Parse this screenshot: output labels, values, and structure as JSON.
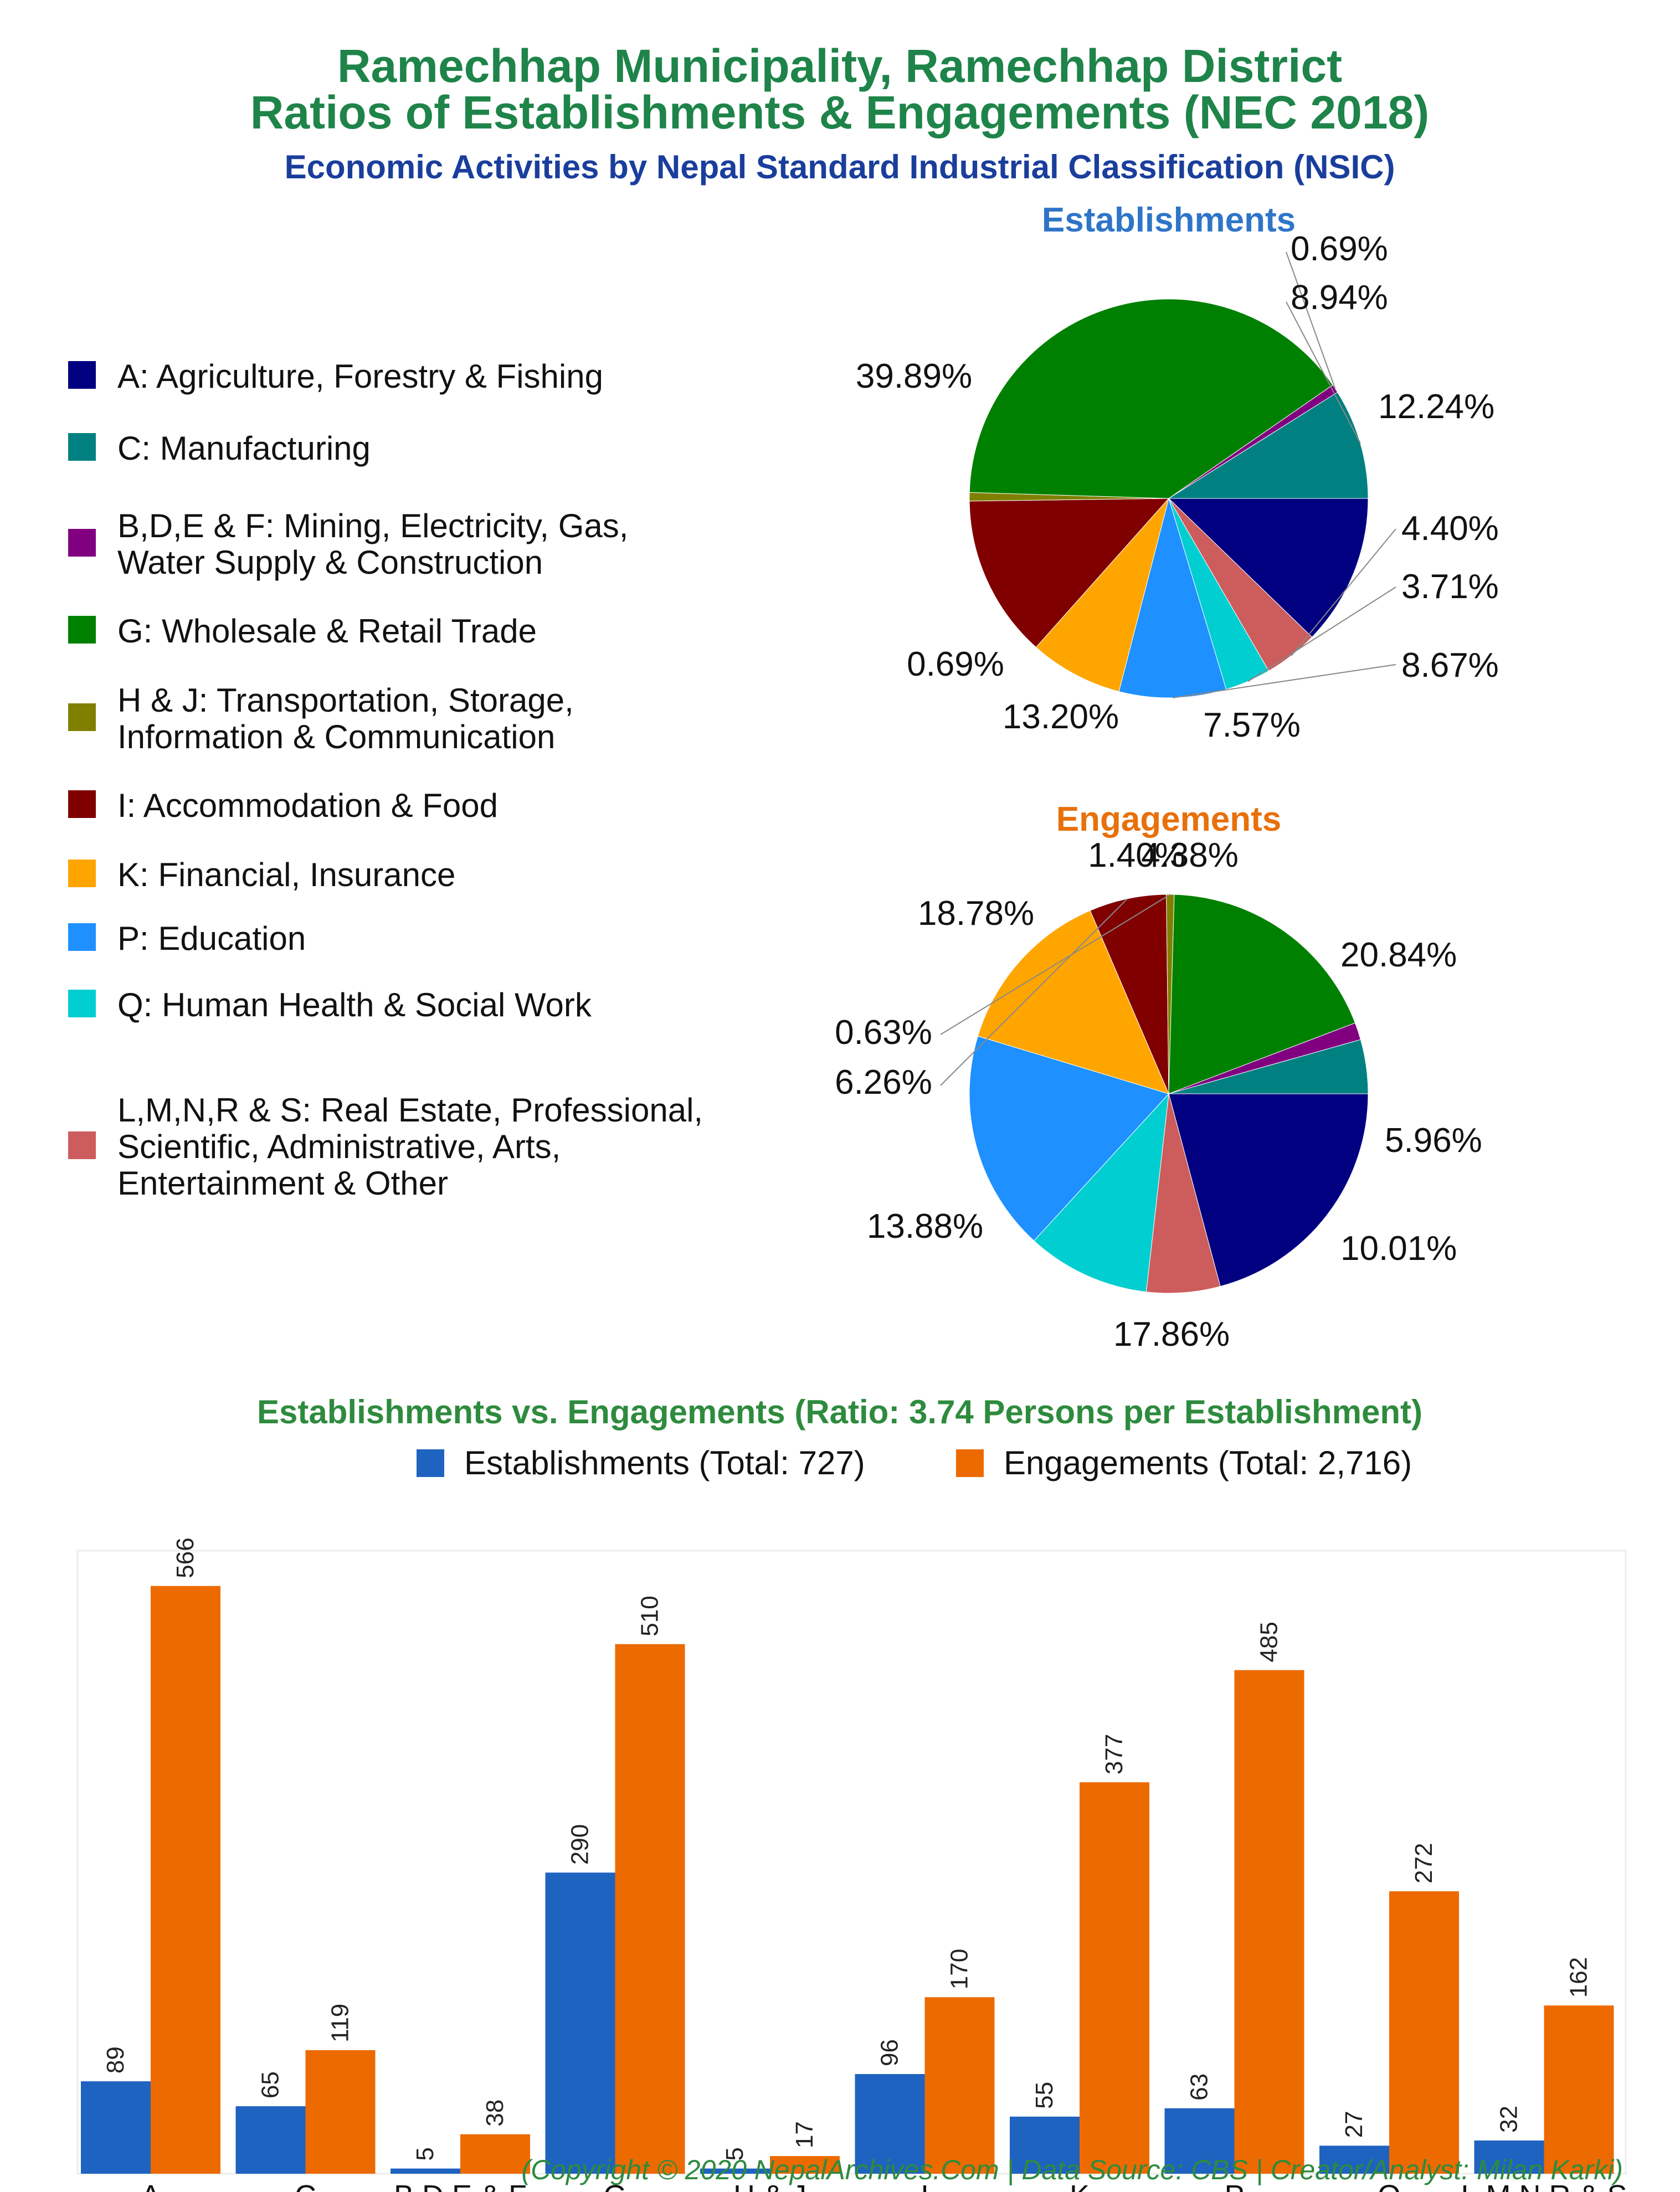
{
  "header": {
    "title_line1": "Ramechhap Municipality, Ramechhap District",
    "title_line2": "Ratios of Establishments & Engagements (NEC 2018)",
    "subtitle": "Economic Activities by Nepal Standard Industrial Classification (NSIC)"
  },
  "legend": [
    {
      "label_lines": [
        "A: Agriculture, Forestry & Fishing"
      ],
      "color": "#000080"
    },
    {
      "label_lines": [
        "C: Manufacturing"
      ],
      "color": "#008080"
    },
    {
      "label_lines": [
        "B,D,E & F: Mining, Electricity, Gas,",
        "Water Supply & Construction"
      ],
      "color": "#800080"
    },
    {
      "label_lines": [
        "G: Wholesale & Retail Trade"
      ],
      "color": "#008000"
    },
    {
      "label_lines": [
        "H & J: Transportation, Storage,",
        "Information & Communication"
      ],
      "color": "#808000"
    },
    {
      "label_lines": [
        "I: Accommodation & Food"
      ],
      "color": "#800000"
    },
    {
      "label_lines": [
        "K: Financial, Insurance"
      ],
      "color": "#FFA500"
    },
    {
      "label_lines": [
        "P: Education"
      ],
      "color": "#1E90FF"
    },
    {
      "label_lines": [
        "Q: Human Health & Social Work"
      ],
      "color": "#00CED1"
    },
    {
      "label_lines": [
        "L,M,N,R & S: Real Estate, Professional,",
        "Scientific, Administrative, Arts,",
        "Entertainment & Other"
      ],
      "color": "#CD5C5C"
    }
  ],
  "chart_data": [
    {
      "type": "pie",
      "title": "Establishments",
      "slice_order": [
        "A",
        "L,M,N,R & S",
        "Q",
        "P",
        "K",
        "I",
        "H & J",
        "G",
        "B,D,E & F",
        "C"
      ],
      "values": [
        12.24,
        4.4,
        3.71,
        8.67,
        7.57,
        13.2,
        0.69,
        39.89,
        0.69,
        8.94
      ],
      "labels": [
        "12.24%",
        "4.40%",
        "3.71%",
        "8.67%",
        "7.57%",
        "13.20%",
        "0.69%",
        "39.89%",
        "0.69%",
        "8.94%"
      ],
      "colors": [
        "#000080",
        "#CD5C5C",
        "#00CED1",
        "#1E90FF",
        "#FFA500",
        "#800000",
        "#808000",
        "#008000",
        "#800080",
        "#008080"
      ]
    },
    {
      "type": "pie",
      "title": "Engagements",
      "slice_order": [
        "A",
        "L,M,N,R & S",
        "Q",
        "P",
        "K",
        "I",
        "H & J",
        "G",
        "B,D,E & F",
        "C"
      ],
      "values": [
        20.84,
        5.96,
        10.01,
        17.86,
        13.88,
        6.26,
        0.63,
        18.78,
        1.4,
        4.38
      ],
      "labels": [
        "20.84%",
        "5.96%",
        "10.01%",
        "17.86%",
        "13.88%",
        "6.26%",
        "0.63%",
        "18.78%",
        "1.40%",
        "4.38%"
      ],
      "colors": [
        "#000080",
        "#CD5C5C",
        "#00CED1",
        "#1E90FF",
        "#FFA500",
        "#800000",
        "#808000",
        "#008000",
        "#800080",
        "#008080"
      ]
    },
    {
      "type": "bar",
      "title": "Establishments vs. Engagements (Ratio: 3.74 Persons per Establishment)",
      "categories": [
        "A",
        "C",
        "B,D,E & F",
        "G",
        "H & J",
        "I",
        "K",
        "P",
        "Q",
        "L,M,N,R & S"
      ],
      "series": [
        {
          "name": "Establishments (Total: 727)",
          "color": "#1F63C0",
          "values": [
            89,
            65,
            5,
            290,
            5,
            96,
            55,
            63,
            27,
            32
          ]
        },
        {
          "name": "Engagements (Total: 2,716)",
          "color": "#ED6A00",
          "values": [
            566,
            119,
            38,
            510,
            17,
            170,
            377,
            485,
            272,
            162
          ]
        }
      ],
      "ylim": [
        0,
        600
      ]
    }
  ],
  "footer": {
    "credit": "(Copyright © 2020 NepalArchives.Com | Data Source: CBS | Creator/Analyst: Milan Karki)"
  }
}
